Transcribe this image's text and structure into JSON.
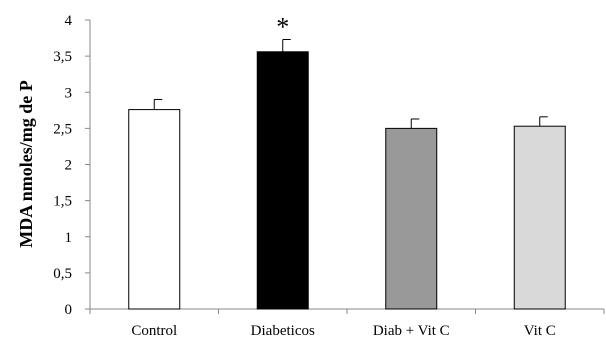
{
  "chart_data": {
    "type": "bar",
    "title": "",
    "xlabel": "",
    "ylabel": "MDA nmoles/mg de P",
    "categories": [
      "Control",
      "Diabeticos",
      "Diab + Vit C",
      "Vit C"
    ],
    "values": [
      2.76,
      3.56,
      2.5,
      2.53
    ],
    "errors": [
      0.14,
      0.17,
      0.13,
      0.13
    ],
    "bar_colors": [
      "#ffffff",
      "#000000",
      "#999999",
      "#d9d9d9"
    ],
    "annotations": [
      {
        "category": "Diabeticos",
        "text": "*"
      }
    ],
    "ylim": [
      0,
      4
    ],
    "yticks": [
      0,
      0.5,
      1,
      1.5,
      2,
      2.5,
      3,
      3.5,
      4
    ],
    "ytick_labels": [
      "0",
      "0,5",
      "1",
      "1,5",
      "2",
      "2,5",
      "3",
      "3,5",
      "4"
    ],
    "grid": false,
    "legend": "none"
  }
}
